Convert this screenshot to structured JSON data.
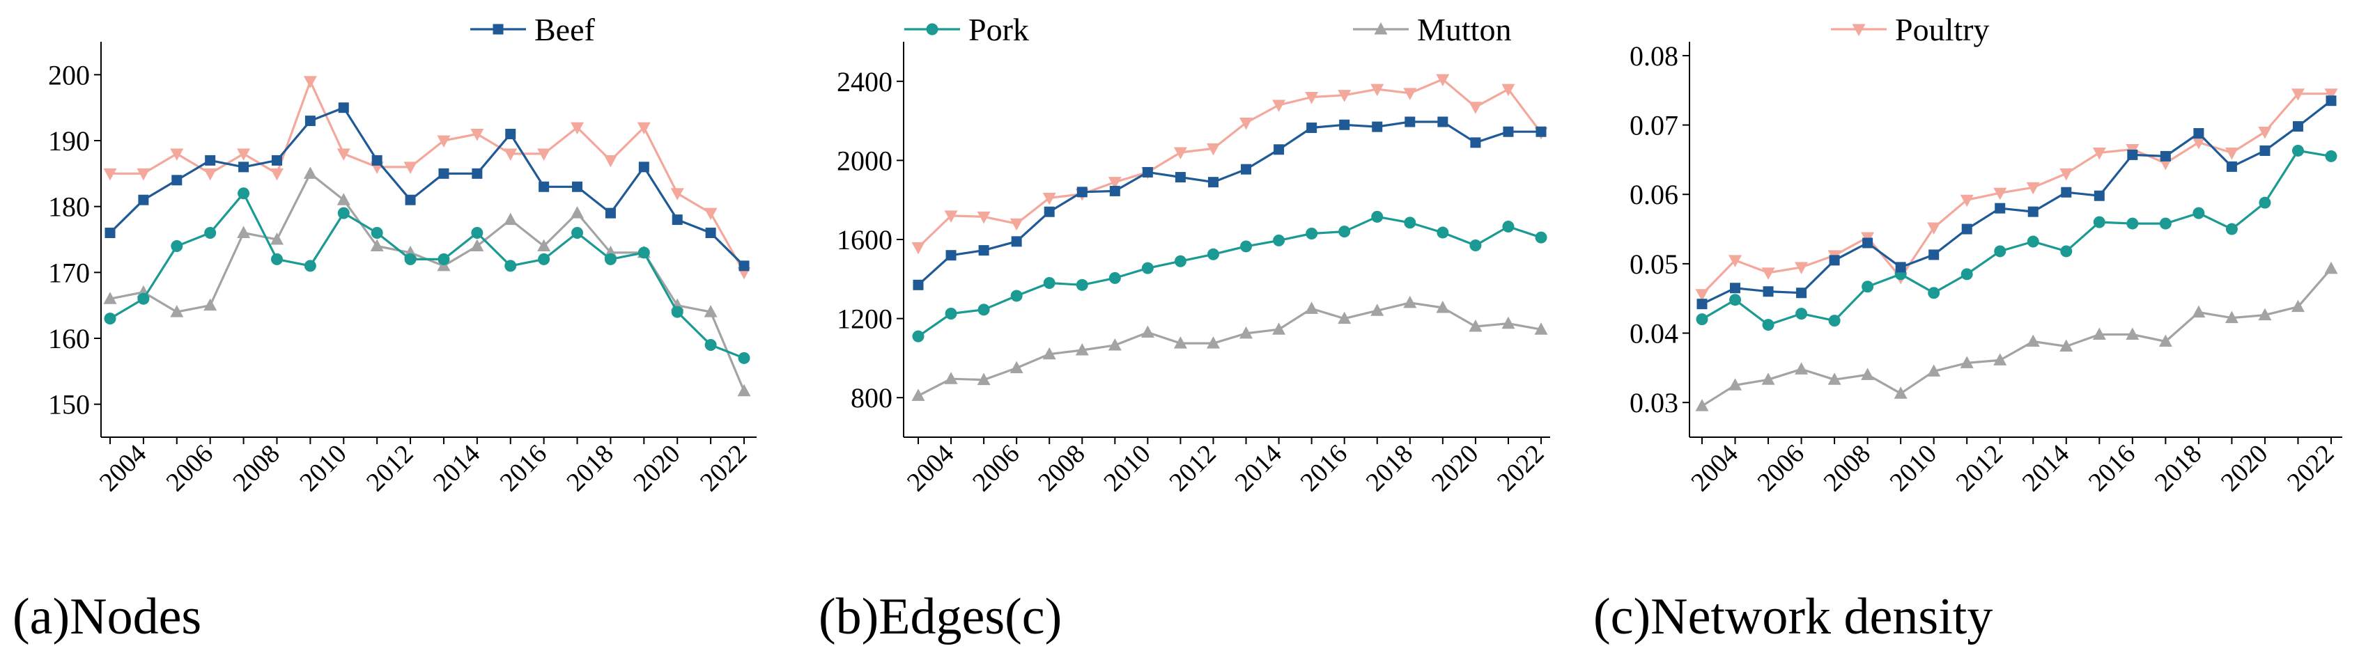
{
  "chart_data": [
    {
      "type": "line",
      "title": "(a)Nodes",
      "ylim": [
        145,
        205
      ],
      "yticks": [
        150,
        160,
        170,
        180,
        190,
        200
      ],
      "ytick_labels": [
        "150",
        "160",
        "170",
        "180",
        "190",
        "200"
      ],
      "x": [
        2003,
        2004,
        2005,
        2006,
        2007,
        2008,
        2009,
        2010,
        2011,
        2012,
        2013,
        2014,
        2015,
        2016,
        2017,
        2018,
        2019,
        2020,
        2021,
        2022
      ],
      "xticks": [
        2004,
        2006,
        2008,
        2010,
        2012,
        2014,
        2016,
        2018,
        2020,
        2022
      ],
      "xtick_labels": [
        "2004",
        "2006",
        "2008",
        "2010",
        "2012",
        "2014",
        "2016",
        "2018",
        "2020",
        "2022"
      ],
      "series": [
        {
          "name": "Poultry",
          "values": [
            185,
            185,
            188,
            185,
            188,
            185,
            199,
            188,
            186,
            186,
            190,
            191,
            188,
            188,
            192,
            187,
            192,
            182,
            179,
            170
          ]
        },
        {
          "name": "Mutton",
          "values": [
            166,
            167,
            164,
            165,
            176,
            175,
            185,
            181,
            174,
            173,
            171,
            174,
            178,
            174,
            179,
            173,
            173,
            165,
            164,
            152
          ]
        },
        {
          "name": "Pork",
          "values": [
            163,
            166,
            174,
            176,
            182,
            172,
            171,
            179,
            176,
            172,
            172,
            176,
            171,
            172,
            176,
            172,
            173,
            164,
            159,
            157
          ]
        },
        {
          "name": "Beef",
          "values": [
            176,
            181,
            184,
            187,
            186,
            187,
            193,
            195,
            187,
            181,
            185,
            185,
            191,
            183,
            183,
            179,
            186,
            178,
            176,
            171
          ]
        }
      ],
      "legend": [
        "Beef"
      ]
    },
    {
      "type": "line",
      "title": "(b)Edges(c)",
      "ylim": [
        600,
        2600
      ],
      "yticks": [
        800,
        1200,
        1600,
        2000,
        2400
      ],
      "ytick_labels": [
        "800",
        "1200",
        "1600",
        "2000",
        "2400"
      ],
      "x": [
        2003,
        2004,
        2005,
        2006,
        2007,
        2008,
        2009,
        2010,
        2011,
        2012,
        2013,
        2014,
        2015,
        2016,
        2017,
        2018,
        2019,
        2020,
        2021,
        2022
      ],
      "xticks": [
        2004,
        2006,
        2008,
        2010,
        2012,
        2014,
        2016,
        2018,
        2020,
        2022
      ],
      "xtick_labels": [
        "2004",
        "2006",
        "2008",
        "2010",
        "2012",
        "2014",
        "2016",
        "2018",
        "2020",
        "2022"
      ],
      "series": [
        {
          "name": "Poultry",
          "values": [
            1560,
            1720,
            1715,
            1680,
            1810,
            1830,
            1890,
            1940,
            2040,
            2060,
            2190,
            2280,
            2320,
            2330,
            2360,
            2340,
            2410,
            2270,
            2360,
            2140
          ]
        },
        {
          "name": "Mutton",
          "values": [
            810,
            895,
            890,
            950,
            1020,
            1040,
            1065,
            1130,
            1075,
            1075,
            1125,
            1145,
            1250,
            1200,
            1240,
            1280,
            1255,
            1160,
            1175,
            1145
          ]
        },
        {
          "name": "Pork",
          "values": [
            1110,
            1225,
            1245,
            1315,
            1380,
            1370,
            1405,
            1455,
            1490,
            1525,
            1565,
            1595,
            1630,
            1640,
            1715,
            1685,
            1635,
            1570,
            1665,
            1610
          ]
        },
        {
          "name": "Beef",
          "values": [
            1370,
            1520,
            1545,
            1590,
            1740,
            1840,
            1845,
            1940,
            1915,
            1890,
            1955,
            2055,
            2165,
            2180,
            2170,
            2195,
            2195,
            2090,
            2145,
            2145
          ]
        }
      ],
      "legend": [
        "Pork",
        "Mutton"
      ]
    },
    {
      "type": "line",
      "title": "(c)Network density",
      "ylim": [
        0.025,
        0.082
      ],
      "yticks": [
        0.03,
        0.04,
        0.05,
        0.06,
        0.07,
        0.08
      ],
      "ytick_labels": [
        "0.03",
        "0.04",
        "0.05",
        "0.06",
        "0.07",
        "0.08"
      ],
      "x": [
        2003,
        2004,
        2005,
        2006,
        2007,
        2008,
        2009,
        2010,
        2011,
        2012,
        2013,
        2014,
        2015,
        2016,
        2017,
        2018,
        2019,
        2020,
        2021,
        2022
      ],
      "xticks": [
        2004,
        2006,
        2008,
        2010,
        2012,
        2014,
        2016,
        2018,
        2020,
        2022
      ],
      "xtick_labels": [
        "2004",
        "2006",
        "2008",
        "2010",
        "2012",
        "2014",
        "2016",
        "2018",
        "2020",
        "2022"
      ],
      "series": [
        {
          "name": "Poultry",
          "values": [
            0.0456,
            0.0505,
            0.0487,
            0.0495,
            0.0512,
            0.0538,
            0.048,
            0.0552,
            0.0592,
            0.0602,
            0.061,
            0.063,
            0.066,
            0.0665,
            0.0645,
            0.0675,
            0.066,
            0.069,
            0.0745,
            0.0745
          ]
        },
        {
          "name": "Mutton",
          "values": [
            0.0295,
            0.0325,
            0.0333,
            0.0348,
            0.0333,
            0.034,
            0.0313,
            0.0345,
            0.0357,
            0.0361,
            0.0388,
            0.0381,
            0.0398,
            0.0398,
            0.0388,
            0.043,
            0.0422,
            0.0426,
            0.0438,
            0.0493
          ]
        },
        {
          "name": "Pork",
          "values": [
            0.042,
            0.0448,
            0.0412,
            0.0428,
            0.0418,
            0.0467,
            0.0485,
            0.0458,
            0.0485,
            0.0518,
            0.0532,
            0.0518,
            0.056,
            0.0558,
            0.0558,
            0.0573,
            0.055,
            0.0588,
            0.0663,
            0.0655
          ]
        },
        {
          "name": "Beef",
          "values": [
            0.0442,
            0.0465,
            0.046,
            0.0458,
            0.0505,
            0.053,
            0.0495,
            0.0513,
            0.055,
            0.058,
            0.0575,
            0.0603,
            0.0598,
            0.0657,
            0.0655,
            0.0688,
            0.064,
            0.0663,
            0.0698,
            0.0735
          ]
        }
      ],
      "legend": [
        "Poultry"
      ]
    }
  ],
  "series_styles": {
    "Beef": {
      "color": "#1f5a96",
      "marker": "square"
    },
    "Pork": {
      "color": "#1a9a93",
      "marker": "circle"
    },
    "Mutton": {
      "color": "#a3a3a3",
      "marker": "triangle-up"
    },
    "Poultry": {
      "color": "#f4a89c",
      "marker": "triangle-down"
    }
  }
}
